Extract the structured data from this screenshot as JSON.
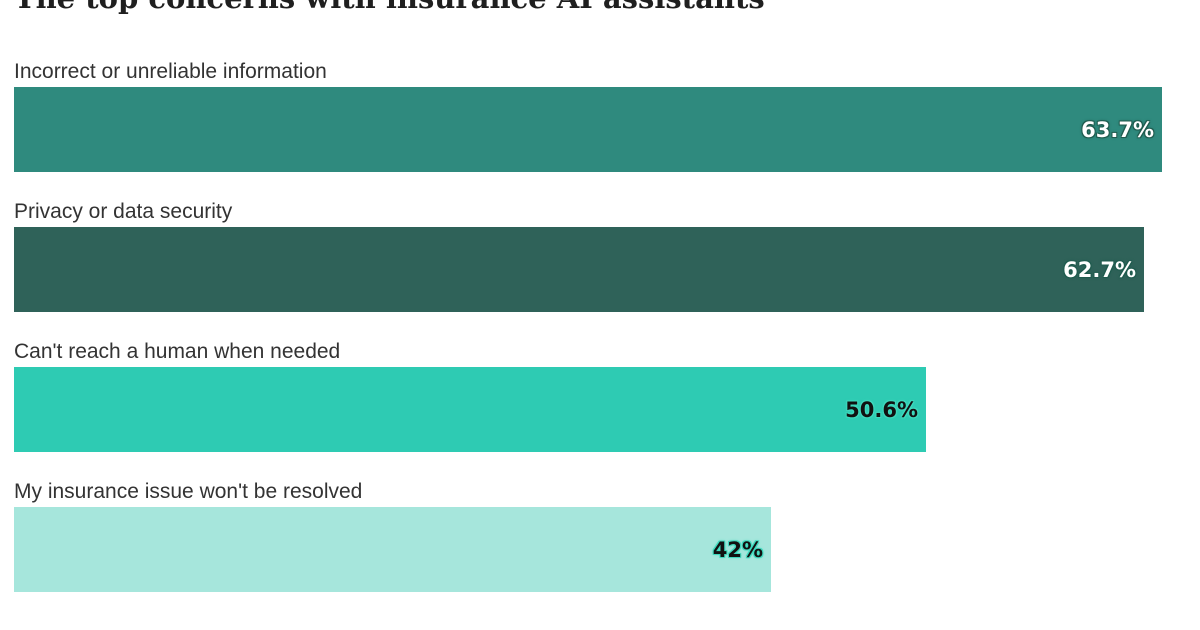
{
  "chart_data": {
    "type": "bar",
    "orientation": "horizontal",
    "title": "The top concerns with insurance AI assistants",
    "categories": [
      "Incorrect or unreliable information",
      "Privacy or data security",
      "Can't reach a human when needed",
      "My insurance issue won't be resolved"
    ],
    "values": [
      63.7,
      62.7,
      50.6,
      42
    ],
    "value_labels": [
      "63.7%",
      "62.7%",
      "50.6%",
      "42%"
    ],
    "colors": [
      "#2f8a7e",
      "#2f6259",
      "#2ecbb3",
      "#a6e6dc"
    ],
    "xlabel": "",
    "ylabel": "",
    "grid": false,
    "legend": "none"
  }
}
